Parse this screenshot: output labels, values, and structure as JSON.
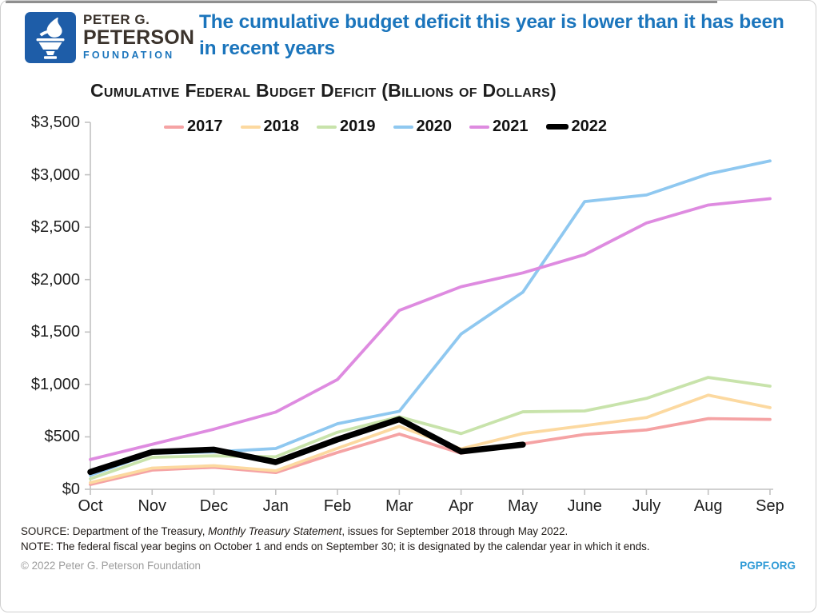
{
  "header": {
    "logo": {
      "line1": "PETER G.",
      "line2": "PETERSON",
      "line3": "FOUNDATION",
      "square_color": "#1e5da8"
    },
    "title": "The cumulative budget deficit this year is lower than it has been in recent years",
    "title_color": "#1b75bc"
  },
  "chart_data": {
    "type": "line",
    "title": "Cumulative Federal Budget Deficit (Billions of Dollars)",
    "x": [
      "Oct",
      "Nov",
      "Dec",
      "Jan",
      "Feb",
      "Mar",
      "Apr",
      "May",
      "June",
      "July",
      "Aug",
      "Sep"
    ],
    "xlabel": "",
    "ylabel": "",
    "ylim": [
      0,
      3500
    ],
    "y_ticks": [
      0,
      500,
      1000,
      1500,
      2000,
      2500,
      3000,
      3500
    ],
    "y_tick_labels": [
      "$0",
      "$500",
      "$1,000",
      "$1,500",
      "$2,000",
      "$2,500",
      "$3,000",
      "$3,500"
    ],
    "grid": false,
    "legend_position": "top",
    "axis_color": "#c2c2c2",
    "series": [
      {
        "name": "2017",
        "color": "#f5a3a4",
        "width": 3.8,
        "values": [
          46,
          183,
          210,
          159,
          351,
          527,
          344,
          433,
          523,
          566,
          674,
          666
        ]
      },
      {
        "name": "2018",
        "color": "#fcd9a0",
        "width": 3.8,
        "values": [
          63,
          202,
          225,
          176,
          391,
          600,
          385,
          532,
          607,
          684,
          898,
          779
        ]
      },
      {
        "name": "2019",
        "color": "#c8e3ab",
        "width": 3.8,
        "values": [
          100,
          305,
          319,
          310,
          544,
          691,
          531,
          739,
          747,
          867,
          1067,
          984
        ]
      },
      {
        "name": "2020",
        "color": "#8fc8f0",
        "width": 3.8,
        "values": [
          134,
          343,
          357,
          389,
          625,
          744,
          1481,
          1880,
          2744,
          2807,
          3007,
          3132
        ]
      },
      {
        "name": "2021",
        "color": "#de8be0",
        "width": 3.8,
        "values": [
          284,
          429,
          573,
          736,
          1047,
          1706,
          1932,
          2064,
          2238,
          2540,
          2711,
          2772
        ]
      },
      {
        "name": "2022",
        "color": "#000000",
        "width": 7.5,
        "values": [
          165,
          356,
          378,
          259,
          475,
          668,
          360,
          426
        ]
      }
    ]
  },
  "footer": {
    "source_prefix": "SOURCE: Department of the Treasury, ",
    "source_italic": "Monthly Treasury Statement",
    "source_suffix": ", issues for September 2018 through May 2022.",
    "note": "NOTE: The federal fiscal year begins on October 1 and ends on September 30; it is designated by the calendar year in which it ends.",
    "copyright": "© 2022 Peter G. Peterson Foundation",
    "site": "PGPF.ORG",
    "site_color": "#2e9ad6"
  }
}
